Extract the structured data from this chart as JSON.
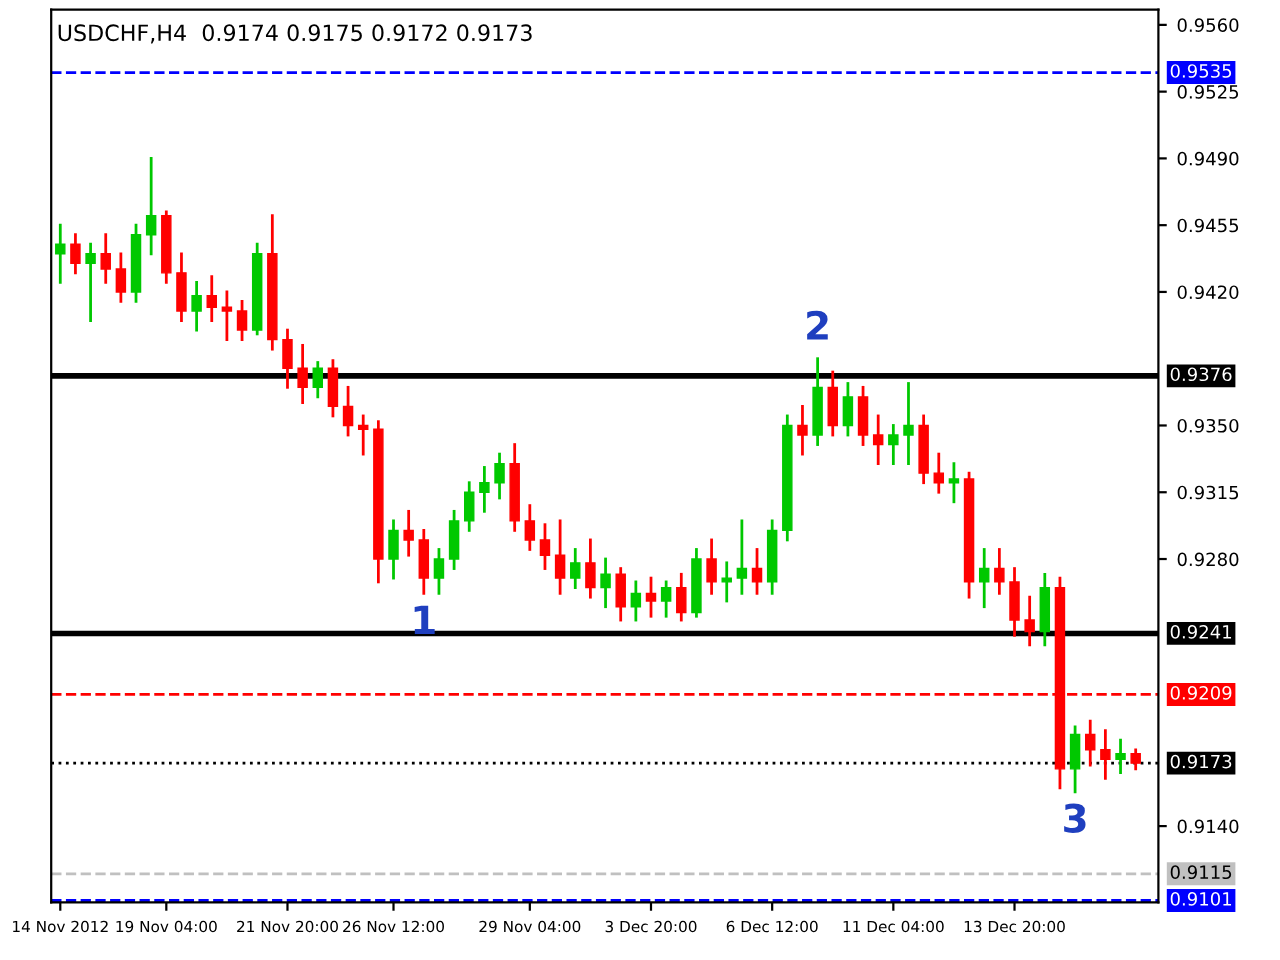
{
  "chart_data": {
    "type": "candlestick",
    "title": "USDCHF,H4  0.9174 0.9175 0.9172 0.9173",
    "categories": [
      "14 Nov 2012",
      null,
      null,
      null,
      null,
      null,
      null,
      "19 Nov 04:00",
      null,
      null,
      null,
      null,
      null,
      null,
      null,
      "21 Nov 20:00",
      null,
      null,
      null,
      null,
      null,
      null,
      "26 Nov 12:00",
      null,
      null,
      null,
      null,
      null,
      null,
      null,
      null,
      "29 Nov 04:00",
      null,
      null,
      null,
      null,
      null,
      null,
      null,
      "3 Dec 20:00",
      null,
      null,
      null,
      null,
      null,
      null,
      null,
      "6 Dec 12:00",
      null,
      null,
      null,
      null,
      null,
      null,
      null,
      "11 Dec 04:00",
      null,
      null,
      null,
      null,
      null,
      null,
      null,
      "13 Dec 20:00",
      null,
      null,
      null,
      null,
      null,
      null,
      null,
      null
    ],
    "ohlc": [
      [
        0.944,
        0.9455,
        0.9425,
        0.9445
      ],
      [
        0.9445,
        0.945,
        0.943,
        0.9435
      ],
      [
        0.9435,
        0.9445,
        0.9405,
        0.944
      ],
      [
        0.944,
        0.945,
        0.9425,
        0.9432
      ],
      [
        0.9432,
        0.944,
        0.9415,
        0.942
      ],
      [
        0.942,
        0.9455,
        0.9415,
        0.945
      ],
      [
        0.945,
        0.949,
        0.944,
        0.946
      ],
      [
        0.946,
        0.9462,
        0.9425,
        0.943
      ],
      [
        0.943,
        0.944,
        0.9405,
        0.941
      ],
      [
        0.941,
        0.9425,
        0.94,
        0.9418
      ],
      [
        0.9418,
        0.9428,
        0.9405,
        0.9412
      ],
      [
        0.9412,
        0.942,
        0.9395,
        0.941
      ],
      [
        0.941,
        0.9415,
        0.9395,
        0.94
      ],
      [
        0.94,
        0.9445,
        0.9398,
        0.944
      ],
      [
        0.944,
        0.946,
        0.939,
        0.9395
      ],
      [
        0.9395,
        0.94,
        0.937,
        0.938
      ],
      [
        0.938,
        0.9392,
        0.9362,
        0.937
      ],
      [
        0.937,
        0.9383,
        0.9365,
        0.938
      ],
      [
        0.938,
        0.9384,
        0.9355,
        0.936
      ],
      [
        0.936,
        0.937,
        0.9345,
        0.935
      ],
      [
        0.935,
        0.9355,
        0.9335,
        0.9348
      ],
      [
        0.9348,
        0.9352,
        0.9268,
        0.928
      ],
      [
        0.928,
        0.93,
        0.927,
        0.9295
      ],
      [
        0.9295,
        0.9305,
        0.9282,
        0.929
      ],
      [
        0.929,
        0.9295,
        0.9262,
        0.927
      ],
      [
        0.927,
        0.9285,
        0.9262,
        0.928
      ],
      [
        0.928,
        0.9305,
        0.9275,
        0.93
      ],
      [
        0.93,
        0.932,
        0.9295,
        0.9315
      ],
      [
        0.9315,
        0.9328,
        0.9305,
        0.932
      ],
      [
        0.932,
        0.9335,
        0.9312,
        0.933
      ],
      [
        0.933,
        0.934,
        0.9295,
        0.93
      ],
      [
        0.93,
        0.9308,
        0.9285,
        0.929
      ],
      [
        0.929,
        0.9298,
        0.9275,
        0.9282
      ],
      [
        0.9282,
        0.93,
        0.9262,
        0.927
      ],
      [
        0.927,
        0.9285,
        0.9265,
        0.9278
      ],
      [
        0.9278,
        0.929,
        0.926,
        0.9265
      ],
      [
        0.9265,
        0.928,
        0.9255,
        0.9272
      ],
      [
        0.9272,
        0.9275,
        0.9248,
        0.9255
      ],
      [
        0.9255,
        0.9268,
        0.9248,
        0.9262
      ],
      [
        0.9262,
        0.927,
        0.925,
        0.9258
      ],
      [
        0.9258,
        0.9268,
        0.925,
        0.9265
      ],
      [
        0.9265,
        0.9272,
        0.9248,
        0.9252
      ],
      [
        0.9252,
        0.9285,
        0.925,
        0.928
      ],
      [
        0.928,
        0.929,
        0.9262,
        0.9268
      ],
      [
        0.9268,
        0.9278,
        0.9258,
        0.927
      ],
      [
        0.927,
        0.93,
        0.9262,
        0.9275
      ],
      [
        0.9275,
        0.9285,
        0.9262,
        0.9268
      ],
      [
        0.9268,
        0.93,
        0.9262,
        0.9295
      ],
      [
        0.9295,
        0.9355,
        0.929,
        0.935
      ],
      [
        0.935,
        0.936,
        0.9335,
        0.9345
      ],
      [
        0.9345,
        0.9385,
        0.934,
        0.937
      ],
      [
        0.937,
        0.9378,
        0.9345,
        0.935
      ],
      [
        0.935,
        0.9372,
        0.9345,
        0.9365
      ],
      [
        0.9365,
        0.937,
        0.934,
        0.9345
      ],
      [
        0.9345,
        0.9355,
        0.933,
        0.934
      ],
      [
        0.934,
        0.935,
        0.933,
        0.9345
      ],
      [
        0.9345,
        0.9372,
        0.933,
        0.935
      ],
      [
        0.935,
        0.9355,
        0.932,
        0.9325
      ],
      [
        0.9325,
        0.9335,
        0.9315,
        0.932
      ],
      [
        0.932,
        0.933,
        0.931,
        0.9322
      ],
      [
        0.9322,
        0.9325,
        0.926,
        0.9268
      ],
      [
        0.9268,
        0.9285,
        0.9255,
        0.9275
      ],
      [
        0.9275,
        0.9285,
        0.9262,
        0.9268
      ],
      [
        0.9268,
        0.9275,
        0.924,
        0.9248
      ],
      [
        0.9248,
        0.926,
        0.9235,
        0.9242
      ],
      [
        0.9242,
        0.9272,
        0.9235,
        0.9265
      ],
      [
        0.9265,
        0.927,
        0.916,
        0.917
      ],
      [
        0.917,
        0.9192,
        0.9158,
        0.9188
      ],
      [
        0.9188,
        0.9195,
        0.9172,
        0.918
      ],
      [
        0.918,
        0.919,
        0.9165,
        0.9175
      ],
      [
        0.9175,
        0.9185,
        0.9168,
        0.9178
      ],
      [
        0.9178,
        0.918,
        0.917,
        0.9173
      ]
    ],
    "colors": [
      "#00c800",
      "#ff0000",
      "#00c800",
      "#ff0000",
      "#ff0000",
      "#00c800",
      "#00c800",
      "#ff0000",
      "#ff0000",
      "#00c800",
      "#ff0000",
      "#ff0000",
      "#ff0000",
      "#00c800",
      "#ff0000",
      "#ff0000",
      "#ff0000",
      "#00c800",
      "#ff0000",
      "#ff0000",
      "#ff0000",
      "#ff0000",
      "#00c800",
      "#ff0000",
      "#ff0000",
      "#00c800",
      "#00c800",
      "#00c800",
      "#00c800",
      "#00c800",
      "#ff0000",
      "#ff0000",
      "#ff0000",
      "#ff0000",
      "#00c800",
      "#ff0000",
      "#00c800",
      "#ff0000",
      "#00c800",
      "#ff0000",
      "#00c800",
      "#ff0000",
      "#00c800",
      "#ff0000",
      "#00c800",
      "#00c800",
      "#ff0000",
      "#00c800",
      "#00c800",
      "#ff0000",
      "#00c800",
      "#ff0000",
      "#00c800",
      "#ff0000",
      "#ff0000",
      "#00c800",
      "#00c800",
      "#ff0000",
      "#ff0000",
      "#00c800",
      "#ff0000",
      "#00c800",
      "#ff0000",
      "#ff0000",
      "#ff0000",
      "#00c800",
      "#ff0000",
      "#00c800",
      "#ff0000",
      "#ff0000",
      "#00c800",
      "#ff0000"
    ],
    "ylim": [
      0.91,
      0.9568
    ],
    "yticks": [
      {
        "value": 0.956,
        "label": "0.9560"
      },
      0.9525,
      {
        "value": 0.949,
        "label": "0.9490"
      },
      0.9455,
      {
        "value": 0.942,
        "label": "0.9420"
      },
      {
        "value": 0.935,
        "label": "0.9350"
      },
      0.9315,
      {
        "value": 0.928,
        "label": "0.9280"
      },
      {
        "value": 0.914,
        "label": "0.9140"
      }
    ],
    "ref_lines": [
      {
        "axis": "y",
        "value": 0.9535,
        "label": "0.9535",
        "color": "#0000ff",
        "line_style": "dashed"
      },
      {
        "axis": "y",
        "value": 0.9376,
        "label": "0.9376",
        "color": "#000000",
        "line_style": "solid"
      },
      {
        "axis": "y",
        "value": 0.9241,
        "label": "0.9241",
        "color": "#000000",
        "line_style": "solid"
      },
      {
        "axis": "y",
        "value": 0.9209,
        "label": "0.9209",
        "color": "#ff0000",
        "line_style": "dashed"
      },
      {
        "axis": "y",
        "value": 0.9173,
        "label": "0.9173",
        "color": "#000000",
        "line_style": "dotted"
      },
      {
        "axis": "y",
        "value": 0.9115,
        "label": "0.9115",
        "color": "#c0c0c0",
        "line_style": "dashed"
      },
      {
        "axis": "y",
        "value": 0.9101,
        "label": "0.9101",
        "color": "#0000ff",
        "line_style": "dashed"
      }
    ],
    "annotations": [
      {
        "text": "1",
        "y": 0.9262
      },
      {
        "text": "2",
        "y": 0.9385
      },
      {
        "text": "3",
        "y": 0.9158
      }
    ],
    "grid": false,
    "legend": false
  }
}
